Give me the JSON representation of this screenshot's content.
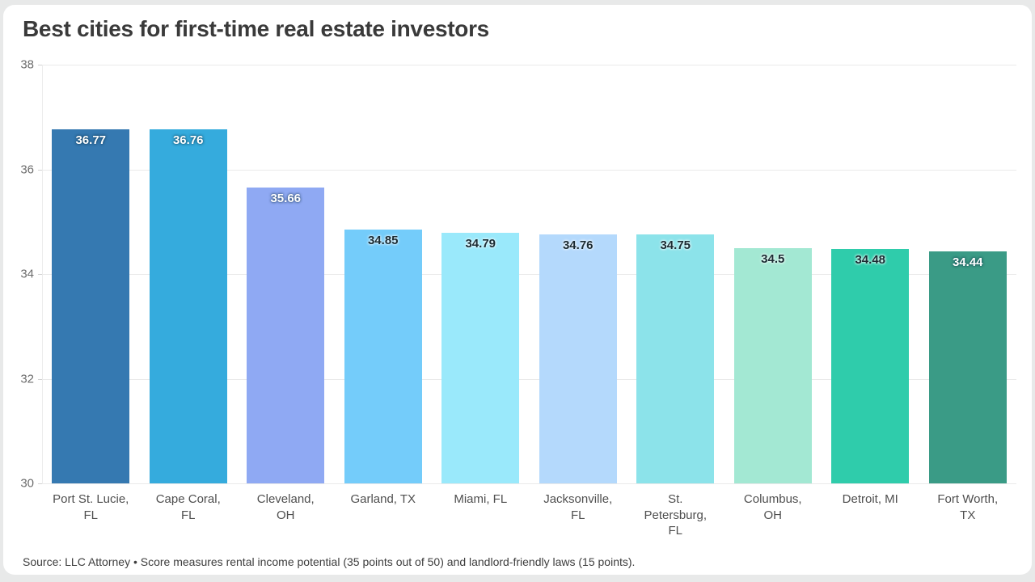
{
  "chart_data": {
    "type": "bar",
    "title": "Best cities for first-time real estate investors",
    "categories": [
      "Port St. Lucie,\nFL",
      "Cape Coral,\nFL",
      "Cleveland,\nOH",
      "Garland, TX",
      "Miami, FL",
      "Jacksonville,\nFL",
      "St.\nPetersburg,\nFL",
      "Columbus,\nOH",
      "Detroit, MI",
      "Fort Worth,\nTX"
    ],
    "values": [
      36.77,
      36.76,
      35.66,
      34.85,
      34.79,
      34.76,
      34.75,
      34.5,
      34.48,
      34.44
    ],
    "value_labels": [
      "36.77",
      "36.76",
      "35.66",
      "34.85",
      "34.79",
      "34.76",
      "34.75",
      "34.5",
      "34.48",
      "34.44"
    ],
    "bar_colors": [
      "#3579b1",
      "#35abdd",
      "#8fa9f3",
      "#74ccfa",
      "#9ae9fb",
      "#b4d9fc",
      "#8ce3ea",
      "#a3e8d3",
      "#2fccab",
      "#3a9b86"
    ],
    "value_label_colors": [
      "#ffffff",
      "#ffffff",
      "#ffffff",
      "#1b2b33",
      "#1b2b33",
      "#1b2b33",
      "#1b2b33",
      "#1b2b33",
      "#1b2b33",
      "#ffffff"
    ],
    "xlabel": "",
    "ylabel": "",
    "ylim": [
      30,
      38
    ],
    "yticks": [
      38,
      36,
      34,
      32,
      30
    ],
    "grid": true,
    "legend": false,
    "source": "Source: LLC Attorney • Score measures rental income potential (35 points out of 50) and landlord-friendly laws (15 points)."
  }
}
